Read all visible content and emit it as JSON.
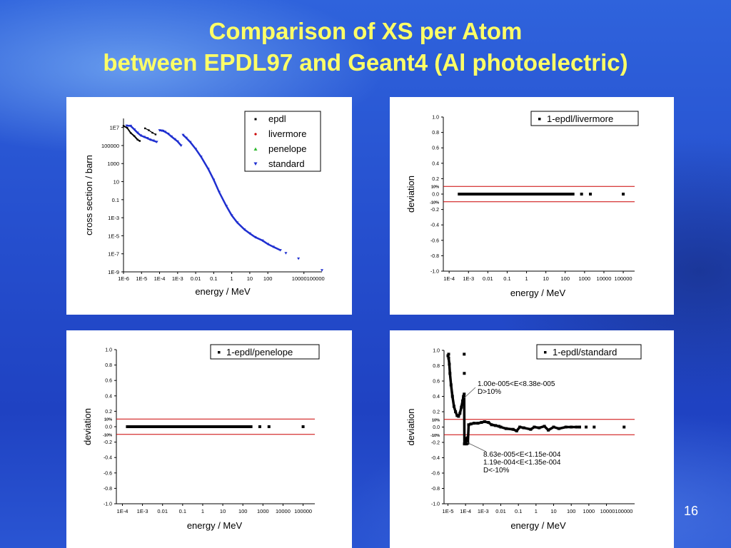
{
  "slide": {
    "title_line1": "Comparison of XS per Atom",
    "title_line2": "between EPDL97 and Geant4 (Al photoelectric)",
    "page_number": "16"
  },
  "colors": {
    "title": "#ffff66",
    "background": "#2650cf",
    "panel_background": "#ffffff",
    "epdl": "#000000",
    "livermore": "#cc0000",
    "penelope": "#33bb33",
    "standard": "#1f2fd0",
    "threshold_line": "#cc0000",
    "deviation_points": "#000000"
  },
  "chart_data": [
    {
      "type": "scatter",
      "panel": "cross-section",
      "xlabel": "energy / MeV",
      "ylabel": "cross section / barn",
      "x_scale": "log",
      "y_scale": "log",
      "xlim": [
        1e-06,
        100000
      ],
      "ylim": [
        1e-09,
        100000000.0
      ],
      "x_tick_labels": [
        "1E-6",
        "1E-5",
        "1E-4",
        "1E-3",
        "0.01",
        "0.1",
        "1",
        "10",
        "100",
        "10000100000"
      ],
      "y_tick_labels": [
        "1E-9",
        "1E-7",
        "1E-5",
        "1E-3",
        "0.1",
        "10",
        "1000",
        "100000",
        "1E7"
      ],
      "legend": [
        "epdl",
        "livermore",
        "penelope",
        "standard"
      ],
      "legend_markers": [
        "square",
        "dot",
        "triangle-up",
        "triangle-down"
      ],
      "legend_position": "top-right",
      "series": [
        {
          "name": "epdl",
          "x": [
            1e-06,
            1.6e-06,
            2.5e-06,
            4e-06,
            6e-06,
            8e-06,
            1.56e-05,
            2.5e-05,
            4e-05,
            6e-05
          ],
          "y": [
            15000000,
            9000000,
            2500000,
            1100000,
            450000,
            320000,
            8000000,
            5000000,
            2600000,
            1700000
          ]
        },
        {
          "name": "standard",
          "x": [
            1.5e-06,
            2.5e-06,
            4e-06,
            6e-06,
            9e-06,
            1.4e-05,
            2.1e-05,
            3e-05,
            4.5e-05,
            7e-05,
            0.0001,
            0.00013,
            0.000156,
            0.0002,
            0.0003,
            0.00045,
            0.0007,
            0.001,
            0.00156,
            0.002,
            0.003,
            0.005,
            0.01,
            0.02,
            0.05,
            0.1,
            0.2,
            0.5,
            1,
            2,
            5,
            10,
            20,
            50,
            100,
            200,
            500,
            1000,
            5000,
            100000
          ],
          "y": [
            16000000,
            15000000,
            6000000,
            2600000,
            1300000,
            900000,
            650000,
            450000,
            350000,
            250000,
            4800000,
            4500000,
            4200000,
            3300000,
            2000000,
            1000000,
            500000,
            280000,
            100000,
            1500000,
            700000,
            240000,
            42000,
            5600,
            250,
            16,
            0.7,
            0.02,
            0.0018,
            0.0003,
            5e-05,
            1.8e-05,
            7e-06,
            3e-06,
            1.2e-06,
            6e-07,
            2.5e-07,
            1.2e-07,
            3e-08,
            1.5e-09
          ]
        }
      ]
    },
    {
      "type": "scatter",
      "panel": "deviation-livermore",
      "xlabel": "energy / MeV",
      "ylabel": "deviation",
      "x_scale": "log",
      "xlim": [
        5e-05,
        300000
      ],
      "ylim": [
        -1.0,
        1.0
      ],
      "x_tick_labels": [
        "1E-4",
        "1E-3",
        "0.01",
        "0.1",
        "1",
        "10",
        "100",
        "1000",
        "10000",
        "100000"
      ],
      "y_tick_labels": [
        "1.0",
        "0.8",
        "0.6",
        "0.4",
        "0.2",
        "0.0",
        "-0.2",
        "-0.4",
        "-0.6",
        "-0.8",
        "-1.0"
      ],
      "threshold_labels": [
        "10%",
        "-10%"
      ],
      "thresholds": [
        0.1,
        -0.1
      ],
      "legend": [
        "1-epdl/livermore"
      ],
      "legend_position": "top-right",
      "series": [
        {
          "name": "1-epdl/livermore",
          "segment": {
            "x_start": 0.00028,
            "x_end": 300,
            "y": 0.0
          },
          "x": [
            700,
            2000,
            100000
          ],
          "y": [
            0,
            0,
            0
          ]
        }
      ]
    },
    {
      "type": "scatter",
      "panel": "deviation-penelope",
      "xlabel": "energy / MeV",
      "ylabel": "deviation",
      "x_scale": "log",
      "xlim": [
        5e-05,
        300000
      ],
      "ylim": [
        -1.0,
        1.0
      ],
      "x_tick_labels": [
        "1E-4",
        "1E-3",
        "0.01",
        "0.1",
        "1",
        "10",
        "100",
        "1000",
        "10000",
        "100000"
      ],
      "y_tick_labels": [
        "1.0",
        "0.8",
        "0.6",
        "0.4",
        "0.2",
        "0.0",
        "-0.2",
        "-0.4",
        "-0.6",
        "-0.8",
        "-1.0"
      ],
      "threshold_labels": [
        "10%",
        "-10%"
      ],
      "thresholds": [
        0.1,
        -0.1
      ],
      "legend": [
        "1-epdl/penelope"
      ],
      "legend_position": "top-right",
      "series": [
        {
          "name": "1-epdl/penelope",
          "segment": {
            "x_start": 0.00015,
            "x_end": 300,
            "y": 0.0
          },
          "x": [
            700,
            2000,
            100000
          ],
          "y": [
            0,
            0,
            0
          ]
        }
      ]
    },
    {
      "type": "scatter",
      "panel": "deviation-standard",
      "xlabel": "energy / MeV",
      "ylabel": "deviation",
      "x_scale": "log",
      "xlim": [
        6e-06,
        300000
      ],
      "ylim": [
        -1.0,
        1.0
      ],
      "x_tick_labels": [
        "1E-5",
        "1E-4",
        "1E-3",
        "0.01",
        "0.1",
        "1",
        "10",
        "100",
        "1000",
        "10000100000"
      ],
      "y_tick_labels": [
        "1.0",
        "0.8",
        "0.6",
        "0.4",
        "0.2",
        "0.0",
        "-0.2",
        "-0.4",
        "-0.6",
        "-0.8",
        "-1.0"
      ],
      "threshold_labels": [
        "10%",
        "-10%"
      ],
      "thresholds": [
        0.1,
        -0.1
      ],
      "legend": [
        "1-epdl/standard"
      ],
      "legend_position": "top-right",
      "annotations": [
        {
          "lines": [
            "1.00e-005<E<8.38e-005",
            "D>10%"
          ],
          "x": 8.38e-05,
          "y": 0.38
        },
        {
          "lines": [
            "8.63e-005<E<1.15e-004",
            "1.19e-004<E<1.35e-004",
            "D<-10%"
          ],
          "x": 0.00012,
          "y": -0.2
        }
      ],
      "series": [
        {
          "name": "1-epdl/standard",
          "x": [
            1e-05,
            1.1e-05,
            1.2e-05,
            1.3e-05,
            1.5e-05,
            1.8e-05,
            2.2e-05,
            2.7e-05,
            3.3e-05,
            4e-05,
            4.8e-05,
            5.8e-05,
            6.8e-05,
            7.6e-05,
            8.38e-05,
            8.63e-05,
            9.5e-05,
            0.000105,
            0.000115,
            0.000119,
            0.000127,
            0.000135,
            0.00015,
            0.0002,
            0.0003,
            0.0005,
            0.0008,
            0.0012,
            0.002,
            0.003,
            0.005,
            0.008,
            0.01,
            0.02,
            0.05,
            0.08,
            0.12,
            0.2,
            0.5,
            0.8,
            1.5,
            3,
            5,
            10,
            20,
            50,
            100,
            200,
            300
          ],
          "y": [
            0.93,
            0.9,
            0.82,
            0.7,
            0.55,
            0.4,
            0.27,
            0.2,
            0.15,
            0.14,
            0.18,
            0.26,
            0.34,
            0.4,
            0.43,
            -0.22,
            -0.15,
            -0.18,
            -0.22,
            -0.19,
            -0.14,
            -0.21,
            0.03,
            0.04,
            0.05,
            0.05,
            0.06,
            0.07,
            0.06,
            0.03,
            0.02,
            0.01,
            0.0,
            -0.02,
            -0.03,
            -0.05,
            0.0,
            -0.01,
            -0.03,
            0.0,
            -0.01,
            0.01,
            -0.04,
            0.0,
            -0.02,
            0.0,
            0.0,
            0.0,
            0.0
          ]
        },
        {
          "name": "1-epdl/standard",
          "x": [
            1.1e-05,
            8.38e-05,
            8.5e-05,
            700,
            2000,
            100000
          ],
          "y": [
            0.95,
            0.95,
            0.7,
            0,
            0,
            0
          ]
        }
      ]
    }
  ]
}
